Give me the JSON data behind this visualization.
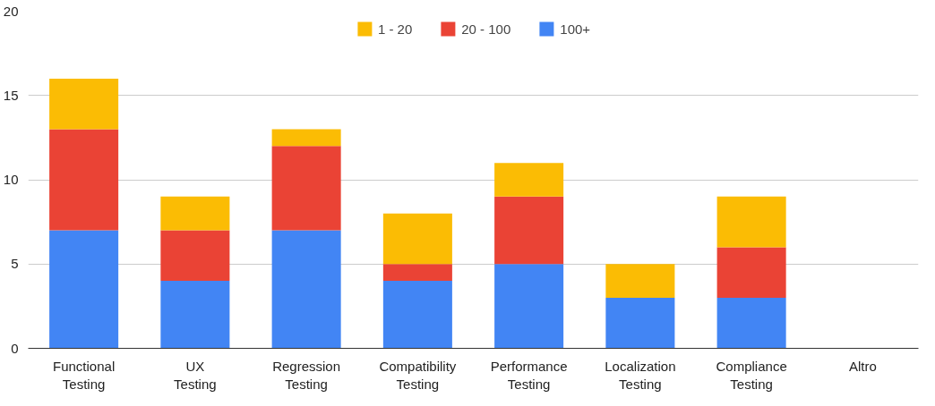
{
  "chart_data": {
    "type": "bar",
    "stacked": true,
    "categories": [
      "Functional Testing",
      "UX Testing",
      "Regression Testing",
      "Compatibility Testing",
      "Performance Testing",
      "Localization Testing",
      "Compliance Testing",
      "Altro"
    ],
    "series": [
      {
        "name": "100+",
        "color": "#4285f4",
        "values": [
          7,
          4,
          7,
          4,
          5,
          3,
          3,
          0
        ]
      },
      {
        "name": "20 - 100",
        "color": "#ea4335",
        "values": [
          6,
          3,
          5,
          1,
          4,
          0,
          3,
          0
        ]
      },
      {
        "name": "1 - 20",
        "color": "#fbbc04",
        "values": [
          3,
          2,
          1,
          3,
          2,
          2,
          3,
          0
        ]
      }
    ],
    "ylim": [
      0,
      20
    ],
    "yticks": [
      0,
      5,
      10,
      15,
      20
    ],
    "grid": "y",
    "legend": "top"
  }
}
